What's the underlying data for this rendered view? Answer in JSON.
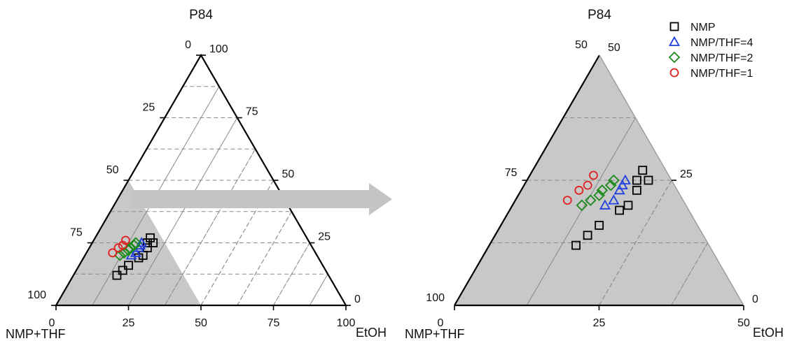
{
  "chart_data": [
    {
      "type": "scatter",
      "subtype": "ternary",
      "panel": "full",
      "range": [
        0,
        100
      ],
      "apex_labels": {
        "top": "P84",
        "left": "NMP+THF",
        "right": "EtOH"
      },
      "axes": {
        "left_edge_ticks": [
          "0",
          "25",
          "50",
          "75",
          "100"
        ],
        "right_edge_ticks": [
          "100",
          "75",
          "50",
          "25",
          "0"
        ],
        "bottom_edge_ticks": [
          "0",
          "25",
          "50",
          "75",
          "100"
        ]
      },
      "grid": true,
      "shaded_zoom_region": "NMP+THF-rich corner, P84 0-50, EtOH 0-50",
      "series": [
        {
          "name": "NMP",
          "marker": "square",
          "color": "#000000",
          "points": [
            {
              "P84": 12,
              "EtOH": 15
            },
            {
              "P84": 14,
              "EtOH": 16
            },
            {
              "P84": 16,
              "EtOH": 17
            },
            {
              "P84": 19,
              "EtOH": 19
            },
            {
              "P84": 20,
              "EtOH": 20
            },
            {
              "P84": 23,
              "EtOH": 20
            },
            {
              "P84": 25,
              "EtOH": 19
            },
            {
              "P84": 25,
              "EtOH": 21
            },
            {
              "P84": 27,
              "EtOH": 19
            }
          ]
        },
        {
          "name": "NMP/THF=4",
          "marker": "triangle",
          "color": "#1f3fe0",
          "points": [
            {
              "P84": 20,
              "EtOH": 16
            },
            {
              "P84": 21,
              "EtOH": 17
            },
            {
              "P84": 23,
              "EtOH": 17
            },
            {
              "P84": 24,
              "EtOH": 17
            },
            {
              "P84": 25,
              "EtOH": 17
            }
          ]
        },
        {
          "name": "NMP/THF=2",
          "marker": "diamond",
          "color": "#1a8a1a",
          "points": [
            {
              "P84": 20,
              "EtOH": 12
            },
            {
              "P84": 21,
              "EtOH": 13
            },
            {
              "P84": 22,
              "EtOH": 14
            },
            {
              "P84": 23,
              "EtOH": 14
            },
            {
              "P84": 24,
              "EtOH": 15
            },
            {
              "P84": 25,
              "EtOH": 15
            }
          ]
        },
        {
          "name": "NMP/THF=1",
          "marker": "circle",
          "color": "#e02020",
          "points": [
            {
              "P84": 21,
              "EtOH": 9
            },
            {
              "P84": 23,
              "EtOH": 10
            },
            {
              "P84": 24,
              "EtOH": 11
            },
            {
              "P84": 26,
              "EtOH": 11
            }
          ]
        }
      ]
    },
    {
      "type": "scatter",
      "subtype": "ternary",
      "panel": "zoom",
      "range": [
        0,
        50
      ],
      "apex_labels": {
        "top": "P84",
        "left": "NMP+THF",
        "right": "EtOH"
      },
      "axes": {
        "left_edge_ticks": [
          "75",
          "100"
        ],
        "left_top_tick": "50",
        "right_edge_ticks": [
          "50",
          "25",
          "0"
        ],
        "bottom_edge_ticks": [
          "0",
          "25",
          "50"
        ]
      },
      "grid": true,
      "legend": {
        "position": "top-right",
        "entries": [
          "NMP",
          "NMP/THF=4",
          "NMP/THF=2",
          "NMP/THF=1"
        ]
      },
      "series": [
        {
          "name": "NMP",
          "marker": "square",
          "color": "#000000",
          "points": [
            {
              "P84": 12,
              "EtOH": 15
            },
            {
              "P84": 14,
              "EtOH": 16
            },
            {
              "P84": 16,
              "EtOH": 17
            },
            {
              "P84": 19,
              "EtOH": 19
            },
            {
              "P84": 20,
              "EtOH": 20
            },
            {
              "P84": 23,
              "EtOH": 20
            },
            {
              "P84": 25,
              "EtOH": 19
            },
            {
              "P84": 25,
              "EtOH": 21
            },
            {
              "P84": 27,
              "EtOH": 19
            }
          ]
        },
        {
          "name": "NMP/THF=4",
          "marker": "triangle",
          "color": "#1f3fe0",
          "points": [
            {
              "P84": 20,
              "EtOH": 16
            },
            {
              "P84": 21,
              "EtOH": 17
            },
            {
              "P84": 23,
              "EtOH": 17
            },
            {
              "P84": 24,
              "EtOH": 17
            },
            {
              "P84": 25,
              "EtOH": 17
            }
          ]
        },
        {
          "name": "NMP/THF=2",
          "marker": "diamond",
          "color": "#1a8a1a",
          "points": [
            {
              "P84": 20,
              "EtOH": 12
            },
            {
              "P84": 21,
              "EtOH": 13
            },
            {
              "P84": 22,
              "EtOH": 14
            },
            {
              "P84": 23,
              "EtOH": 14
            },
            {
              "P84": 24,
              "EtOH": 15
            },
            {
              "P84": 25,
              "EtOH": 15
            }
          ]
        },
        {
          "name": "NMP/THF=1",
          "marker": "circle",
          "color": "#e02020",
          "points": [
            {
              "P84": 21,
              "EtOH": 9
            },
            {
              "P84": 23,
              "EtOH": 10
            },
            {
              "P84": 24,
              "EtOH": 11
            },
            {
              "P84": 26,
              "EtOH": 11
            }
          ]
        }
      ]
    }
  ],
  "colors": {
    "shade": "#c8c8c8",
    "arrow": "#c4c4c4",
    "grid": "#8a8a8a"
  }
}
